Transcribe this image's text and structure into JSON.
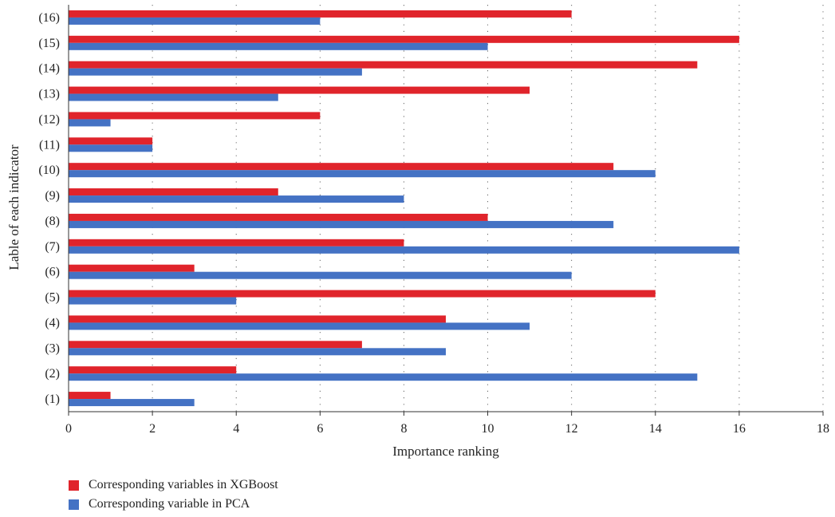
{
  "chart_data": {
    "type": "bar",
    "orientation": "horizontal",
    "categories": [
      "(1)",
      "(2)",
      "(3)",
      "(4)",
      "(5)",
      "(6)",
      "(7)",
      "(8)",
      "(9)",
      "(10)",
      "(11)",
      "(12)",
      "(13)",
      "(14)",
      "(15)",
      "(16)"
    ],
    "series": [
      {
        "name": "Corresponding variables in XGBoost",
        "color": "#e0242b",
        "values": [
          1,
          4,
          7,
          9,
          14,
          3,
          8,
          10,
          5,
          13,
          2,
          6,
          11,
          15,
          16,
          12
        ]
      },
      {
        "name": "Corresponding variable in PCA",
        "color": "#4472c4",
        "values": [
          3,
          15,
          9,
          11,
          4,
          12,
          16,
          13,
          8,
          14,
          2,
          1,
          5,
          7,
          10,
          6
        ]
      }
    ],
    "xlabel": "Importance ranking",
    "ylabel": "Lable of each indicator",
    "xlim": [
      0,
      18
    ],
    "xticks": [
      0,
      2,
      4,
      6,
      8,
      10,
      12,
      14,
      16,
      18
    ],
    "grid": "vertical dotted",
    "legend_position": "bottom-left"
  }
}
